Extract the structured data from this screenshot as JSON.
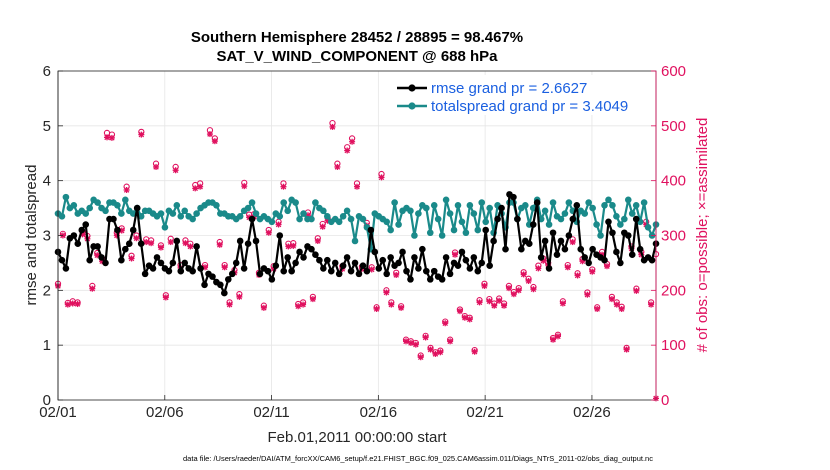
{
  "chart_data": {
    "type": "line",
    "title": "Southern Hemisphere 28452 / 28895 = 98.467%",
    "subtitle": "SAT_V_WIND_COMPONENT @ 688 hPa",
    "xlabel": "Feb.01,2011 00:00:00 start",
    "ylabel": "rmse and totalspread",
    "ylabel_right": "# of obs: o=possible; ×=assimilated",
    "xlim": [
      0,
      28
    ],
    "ylim": [
      0,
      6
    ],
    "ylim_right": [
      0,
      600
    ],
    "x_ticks": [
      0,
      5,
      10,
      15,
      20,
      25
    ],
    "x_tick_labels": [
      "02/01",
      "02/06",
      "02/11",
      "02/16",
      "02/21",
      "02/26"
    ],
    "y_ticks": [
      0,
      1,
      2,
      3,
      4,
      5,
      6
    ],
    "y_tick_labels": [
      "0",
      "1",
      "2",
      "3",
      "4",
      "5",
      "6"
    ],
    "y_ticks_right": [
      0,
      100,
      200,
      300,
      400,
      500,
      600
    ],
    "y_tick_labels_right": [
      "0",
      "100",
      "200",
      "300",
      "400",
      "500",
      "600"
    ],
    "legend_location": "top-right",
    "series": [
      {
        "name": "rmse grand pr = 2.6627",
        "axis": "left",
        "color": "#000000",
        "values": [
          2.7,
          2.55,
          2.4,
          2.95,
          3.0,
          2.85,
          3.1,
          3.2,
          2.55,
          2.8,
          2.8,
          2.6,
          2.5,
          3.3,
          3.3,
          3.1,
          2.55,
          2.75,
          2.85,
          3.1,
          3.5,
          2.85,
          2.3,
          2.45,
          2.4,
          2.6,
          2.5,
          2.4,
          2.35,
          2.5,
          2.9,
          2.35,
          2.5,
          2.4,
          2.35,
          2.8,
          2.4,
          2.1,
          2.3,
          2.25,
          2.15,
          2.1,
          1.95,
          2.2,
          2.3,
          2.5,
          2.9,
          2.4,
          2.85,
          3.3,
          2.9,
          2.3,
          2.4,
          2.35,
          2.2,
          2.45,
          3.0,
          2.35,
          2.6,
          2.35,
          2.5,
          2.7,
          2.6,
          2.8,
          2.75,
          2.65,
          2.55,
          2.4,
          2.55,
          2.35,
          2.5,
          2.3,
          2.45,
          2.6,
          2.35,
          2.5,
          2.3,
          2.45,
          2.35,
          3.1,
          2.7,
          2.4,
          2.55,
          2.3,
          2.6,
          2.45,
          2.5,
          2.7,
          2.35,
          2.2,
          2.6,
          2.4,
          2.75,
          2.35,
          2.2,
          2.35,
          2.25,
          2.2,
          2.6,
          2.3,
          2.5,
          2.45,
          2.7,
          2.55,
          2.4,
          2.6,
          2.35,
          2.5,
          3.1,
          2.45,
          2.9,
          3.3,
          3.5,
          2.75,
          3.75,
          3.7,
          3.3,
          2.75,
          2.9,
          2.85,
          3.2,
          3.6,
          2.6,
          2.9,
          2.4,
          3.05,
          2.65,
          2.9,
          2.75,
          3.0,
          3.3,
          3.55,
          2.75,
          2.6,
          2.5,
          2.75,
          2.65,
          2.6,
          2.55,
          3.25,
          3.05,
          2.7,
          2.5,
          3.05,
          3.0,
          2.65,
          3.3,
          2.75,
          2.55,
          2.6,
          2.55,
          2.85
        ]
      },
      {
        "name": "totalspread grand pr = 3.4049",
        "axis": "left",
        "color": "#1a8a8a",
        "values": [
          3.4,
          3.35,
          3.7,
          3.5,
          3.55,
          3.4,
          3.45,
          3.4,
          3.5,
          3.65,
          3.6,
          3.5,
          3.45,
          3.6,
          3.6,
          3.55,
          3.4,
          3.65,
          3.45,
          3.4,
          3.5,
          3.35,
          3.45,
          3.45,
          3.4,
          3.35,
          3.4,
          3.15,
          3.45,
          3.4,
          3.55,
          3.35,
          3.45,
          3.35,
          3.3,
          3.4,
          3.5,
          3.55,
          3.6,
          3.6,
          3.55,
          3.4,
          3.4,
          3.35,
          3.35,
          3.3,
          3.35,
          3.45,
          3.5,
          3.6,
          3.4,
          3.3,
          3.35,
          3.3,
          3.25,
          3.4,
          3.35,
          3.6,
          3.45,
          3.65,
          3.6,
          3.3,
          3.4,
          3.3,
          3.3,
          3.6,
          3.5,
          3.45,
          3.35,
          3.25,
          3.3,
          3.25,
          3.35,
          3.45,
          3.3,
          2.9,
          3.35,
          3.3,
          3.15,
          2.75,
          3.4,
          3.35,
          3.3,
          3.25,
          3.1,
          3.6,
          3.2,
          3.45,
          3.5,
          3.45,
          3.0,
          3.4,
          3.55,
          3.5,
          3.05,
          3.55,
          3.3,
          3.0,
          3.65,
          3.4,
          3.1,
          3.55,
          3.25,
          3.05,
          3.55,
          3.4,
          3.1,
          3.6,
          3.25,
          3.5,
          3.05,
          3.55,
          3.4,
          3.15,
          3.6,
          3.6,
          3.3,
          3.5,
          3.55,
          3.2,
          3.5,
          3.65,
          3.3,
          3.45,
          3.2,
          3.6,
          3.35,
          3.3,
          3.4,
          3.6,
          3.45,
          3.25,
          3.45,
          3.4,
          3.6,
          3.5,
          3.2,
          3.0,
          3.55,
          3.65,
          3.55,
          3.35,
          3.2,
          3.3,
          3.65,
          3.4,
          3.55,
          3.25,
          3.6,
          3.15,
          3.0,
          3.2
        ]
      },
      {
        "name": "obs possible",
        "axis": "right",
        "color": "#e0115f",
        "values": [
          212,
          303,
          177,
          180,
          178,
          307,
          299,
          208,
          268,
          258,
          487,
          484,
          305,
          313,
          389,
          263,
          300,
          489,
          293,
          291,
          431,
          282,
          191,
          294,
          425,
          246,
          291,
          285,
          392,
          395,
          246,
          492,
          477,
          288,
          246,
          178,
          237,
          193,
          396,
          338,
          339,
          232,
          172,
          310,
          244,
          325,
          395,
          285,
          286,
          175,
          178,
          342,
          188,
          295,
          321,
          332,
          505,
          431,
          244,
          461,
          477,
          395,
          243,
          323,
          242,
          169,
          412,
          200,
          178,
          232,
          171,
          110,
          107,
          104,
          81,
          117,
          95,
          87,
          90,
          143,
          110,
          269,
          165,
          153,
          150,
          91,
          182,
          212,
          184,
          176,
          185,
          176,
          208,
          197,
          204,
          233,
          221,
          206,
          245,
          258,
          250,
          113,
          119,
          180,
          246,
          293,
          231,
          257,
          196,
          238,
          169,
          270,
          248,
          188,
          178,
          170,
          95,
          280,
          203,
          270,
          325,
          178,
          266
        ]
      },
      {
        "name": "obs assimilated",
        "axis": "right",
        "color": "#e0115f",
        "values": [
          208,
          300,
          174,
          176,
          175,
          302,
          294,
          203,
          264,
          253,
          479,
          478,
          300,
          309,
          383,
          258,
          295,
          484,
          288,
          286,
          425,
          278,
          187,
          288,
          419,
          241,
          286,
          280,
          386,
          389,
          242,
          485,
          472,
          283,
          242,
          174,
          232,
          188,
          390,
          333,
          334,
          228,
          168,
          305,
          239,
          320,
          389,
          280,
          281,
          171,
          174,
          337,
          184,
          290,
          316,
          327,
          498,
          425,
          239,
          455,
          471,
          389,
          239,
          318,
          238,
          166,
          406,
          196,
          174,
          228,
          168,
          107,
          104,
          101,
          78,
          114,
          92,
          84,
          87,
          140,
          107,
          265,
          162,
          150,
          147,
          88,
          178,
          208,
          180,
          172,
          181,
          172,
          204,
          193,
          200,
          229,
          217,
          202,
          240,
          254,
          246,
          110,
          116,
          176,
          242,
          288,
          227,
          253,
          192,
          234,
          166,
          265,
          244,
          184,
          174,
          166,
          92,
          276,
          199,
          265,
          320,
          174,
          3
        ]
      }
    ],
    "footnote": "data file: /Users/raeder/DAI/ATM_forcXX/CAM6_setup/f.e21.FHIST_BGC.f09_025.CAM6assim.011/Diags_NTrS_2011-02/obs_diag_output.nc"
  },
  "colors": {
    "rmse": "#000000",
    "spread": "#1a8a8a",
    "obs": "#e0115f",
    "legend_text": "#1a5fe0",
    "grid": "#e6e6e6"
  }
}
